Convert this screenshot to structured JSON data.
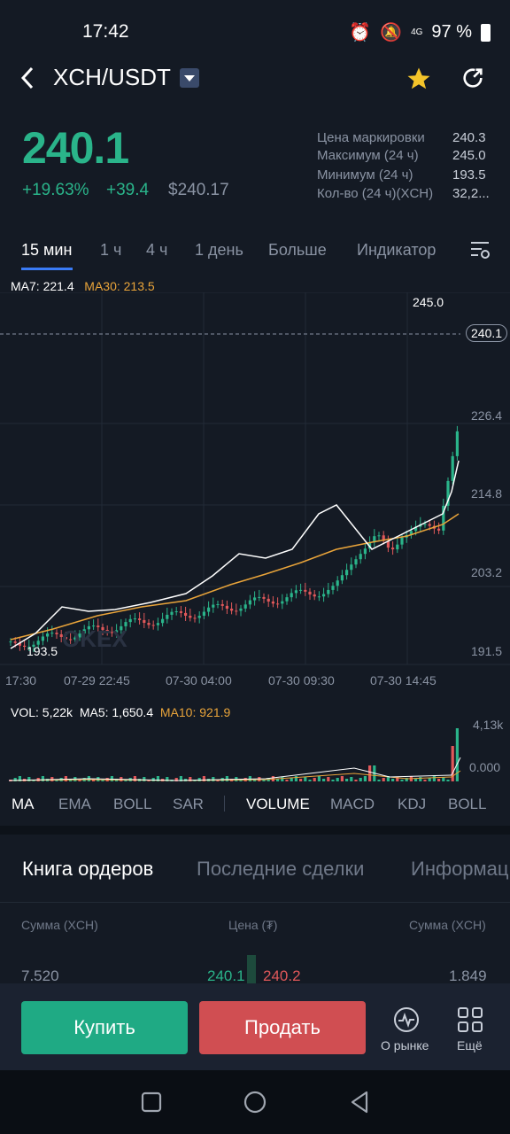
{
  "status": {
    "time": "17:42",
    "network": "4G",
    "battery": "97 %"
  },
  "header": {
    "pair": "XCH/USDT"
  },
  "price": {
    "last": "240.1",
    "pct": "+19.63%",
    "abs": "+39.4",
    "usd": "$240.17"
  },
  "stats": [
    {
      "label": "Цена маркировки",
      "value": "240.3"
    },
    {
      "label": "Максимум (24 ч)",
      "value": "245.0"
    },
    {
      "label": "Минимум (24 ч)",
      "value": "193.5"
    },
    {
      "label": "Кол-во (24 ч)(XCH)",
      "value": "32,2..."
    }
  ],
  "timeframes": [
    "15 мин",
    "1 ч",
    "4 ч",
    "1 день",
    "Больше",
    "Индикатор"
  ],
  "chart": {
    "ma7_label": "MA7: 221.4",
    "ma30_label": "MA30: 213.5",
    "y_ticks": [
      "245.0",
      "240.1",
      "226.4",
      "214.8",
      "203.2",
      "191.5"
    ],
    "min_label": "193.5",
    "watermark": "OKEX",
    "x_ticks": [
      "17:30",
      "07-29 22:45",
      "07-30 04:00",
      "07-30 09:30",
      "07-30 14:45"
    ],
    "vol_label": "VOL: 5,22k",
    "ma5_label": "MA5: 1,650.4",
    "ma10_label": "MA10: 921.9",
    "vol_ticks": [
      "4,13k",
      "0.000"
    ]
  },
  "chart_data": {
    "type": "candlestick",
    "series": [
      {
        "name": "MA7",
        "value": 221.4
      },
      {
        "name": "MA30",
        "value": 213.5
      }
    ],
    "ylim": [
      191.5,
      245.0
    ],
    "high": 245.0,
    "low": 193.5,
    "last": 240.1
  },
  "indicators": [
    "MA",
    "EMA",
    "BOLL",
    "SAR",
    "VOLUME",
    "MACD",
    "KDJ",
    "BOLL"
  ],
  "orderbook": {
    "tabs": [
      "Книга ордеров",
      "Последние сделки",
      "Информац"
    ],
    "headers": [
      "Сумма (XCH)",
      "Цена (₮)",
      "Сумма (XCH)"
    ],
    "row": {
      "bid_amt": "7.520",
      "bid": "240.1",
      "ask": "240.2",
      "ask_amt": "1.849"
    }
  },
  "actions": {
    "buy": "Купить",
    "sell": "Продать",
    "market": "О рынке",
    "more": "Ещё"
  },
  "colors": {
    "up": "#2ab48a",
    "down": "#e0585a",
    "ma30": "#e9a43a",
    "accent": "#3a7bf6"
  }
}
